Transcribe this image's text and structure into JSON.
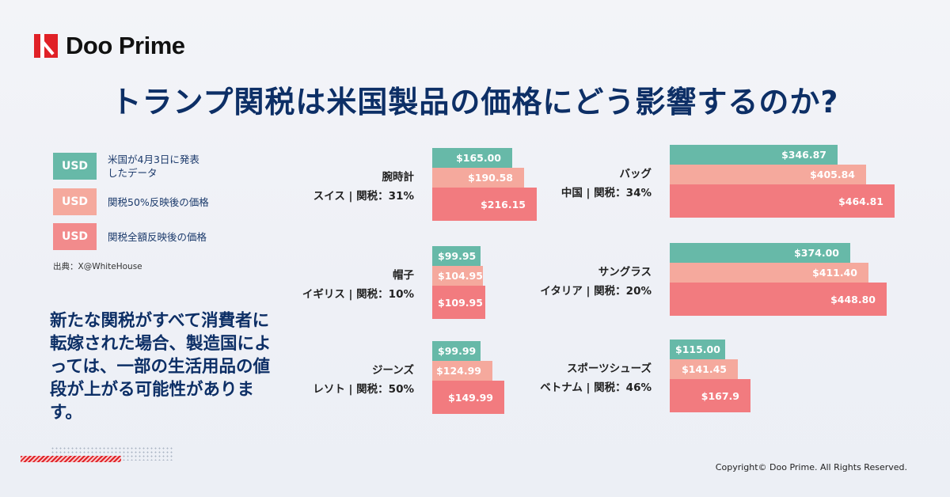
{
  "brand": {
    "name": "Doo Prime"
  },
  "title": "トランプ関税は米国製品の価格にどう影響するのか?",
  "legend": [
    {
      "swatch": "USD",
      "label": "米国が4月3日に発表したデータ",
      "color": "#67b9a8"
    },
    {
      "swatch": "USD",
      "label": "関税50%反映後の価格",
      "color": "#f5a99d"
    },
    {
      "swatch": "USD",
      "label": "関税全額反映後の価格",
      "color": "#f27b7f"
    }
  ],
  "source": "出典：X@WhiteHouse",
  "note": "新たな関税がすべて消費者に転嫁された場合、製造国によっては、一部の生活用品の値段が上がる可能性があります。",
  "copyright": "Copyright© Doo Prime. All Rights Reserved.",
  "chart_data": {
    "type": "bar",
    "orientation": "horizontal",
    "series": [
      {
        "name": "米国が4月3日に発表したデータ",
        "color": "#67b9a8"
      },
      {
        "name": "関税50%反映後の価格",
        "color": "#f5a99d"
      },
      {
        "name": "関税全額反映後の価格",
        "color": "#f27b7f"
      }
    ],
    "groups": [
      {
        "item": "腕時計",
        "origin": "スイス | 関税：31%",
        "values": [
          165.0,
          190.58,
          216.15
        ],
        "labels": [
          "$165.00",
          "$190.58",
          "$216.15"
        ]
      },
      {
        "item": "帽子",
        "origin": "イギリス | 関税：10%",
        "values": [
          99.95,
          104.95,
          109.95
        ],
        "labels": [
          "$99.95",
          "$104.95",
          "$109.95"
        ]
      },
      {
        "item": "ジーンズ",
        "origin": "レソト | 関税：50%",
        "values": [
          99.99,
          124.99,
          149.99
        ],
        "labels": [
          "$99.99",
          "$124.99",
          "$149.99"
        ]
      },
      {
        "item": "バッグ",
        "origin": "中国 | 関税：34%",
        "values": [
          346.87,
          405.84,
          464.81
        ],
        "labels": [
          "$346.87",
          "$405.84",
          "$464.81"
        ]
      },
      {
        "item": "サングラス",
        "origin": "イタリア | 関税：20%",
        "values": [
          374.0,
          411.4,
          448.8
        ],
        "labels": [
          "$374.00",
          "$411.40",
          "$448.80"
        ]
      },
      {
        "item": "スポーツシューズ",
        "origin": "ベトナム | 関税：46%",
        "values": [
          115.0,
          141.45,
          167.9
        ],
        "labels": [
          "$115.00",
          "$141.45",
          "$167.9"
        ]
      }
    ]
  }
}
